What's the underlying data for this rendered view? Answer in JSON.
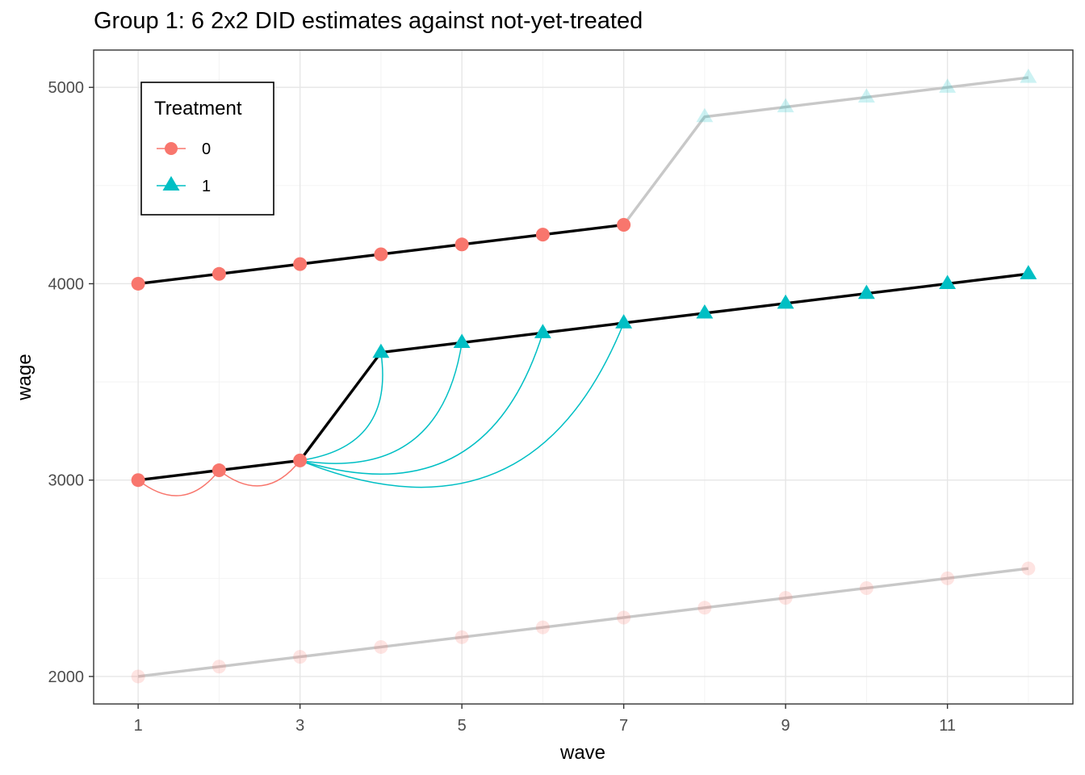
{
  "chart_data": {
    "type": "line",
    "title": "Group 1: 6 2x2 DID estimates against not-yet-treated",
    "xlabel": "wave",
    "ylabel": "wage",
    "xlim": [
      0.45,
      12.55
    ],
    "ylim": [
      1860,
      5190
    ],
    "xticks": [
      1,
      3,
      5,
      7,
      9,
      11
    ],
    "yticks": [
      2000,
      3000,
      4000,
      5000
    ],
    "grid": true,
    "legend": {
      "title": "Treatment",
      "placement": "top-left",
      "entries": [
        {
          "label": "0",
          "shape": "circle",
          "color": "#F8766D"
        },
        {
          "label": "1",
          "shape": "triangle",
          "color": "#00BFC4"
        }
      ]
    },
    "colors": {
      "untreated": "#F8766D",
      "treated": "#00BFC4",
      "focus_line": "#000000",
      "faded_line": "#c8c8c8"
    },
    "series": [
      {
        "x": [
          1,
          2,
          3,
          4,
          5,
          6,
          7,
          8,
          9,
          10,
          11,
          12
        ],
        "y": [
          4000,
          4050,
          4100,
          4150,
          4200,
          4250,
          4300,
          4850,
          4900,
          4950,
          5000,
          5050
        ],
        "treatment": [
          0,
          0,
          0,
          0,
          0,
          0,
          0,
          1,
          1,
          1,
          1,
          1
        ],
        "highlighted_waves": [
          1,
          7
        ]
      },
      {
        "x": [
          1,
          2,
          3,
          4,
          5,
          6,
          7,
          8,
          9,
          10,
          11,
          12
        ],
        "y": [
          3000,
          3050,
          3100,
          3650,
          3700,
          3750,
          3800,
          3850,
          3900,
          3950,
          4000,
          4050
        ],
        "treatment": [
          0,
          0,
          0,
          1,
          1,
          1,
          1,
          1,
          1,
          1,
          1,
          1
        ],
        "highlighted_waves": [
          1,
          12
        ]
      },
      {
        "x": [
          1,
          2,
          3,
          4,
          5,
          6,
          7,
          8,
          9,
          10,
          11,
          12
        ],
        "y": [
          2000,
          2050,
          2100,
          2150,
          2200,
          2250,
          2300,
          2350,
          2400,
          2450,
          2500,
          2550
        ],
        "treatment": [
          0,
          0,
          0,
          0,
          0,
          0,
          0,
          0,
          0,
          0,
          0,
          0
        ],
        "highlighted_waves": []
      }
    ],
    "comparisons": [
      {
        "from": [
          1,
          3000
        ],
        "to": [
          2,
          3050
        ],
        "treatment": 0
      },
      {
        "from": [
          2,
          3050
        ],
        "to": [
          3,
          3100
        ],
        "treatment": 0
      },
      {
        "from": [
          3,
          3100
        ],
        "to": [
          4,
          3650
        ],
        "treatment": 1
      },
      {
        "from": [
          3,
          3100
        ],
        "to": [
          5,
          3700
        ],
        "treatment": 1
      },
      {
        "from": [
          3,
          3100
        ],
        "to": [
          6,
          3750
        ],
        "treatment": 1
      },
      {
        "from": [
          3,
          3100
        ],
        "to": [
          7,
          3800
        ],
        "treatment": 1
      }
    ]
  }
}
